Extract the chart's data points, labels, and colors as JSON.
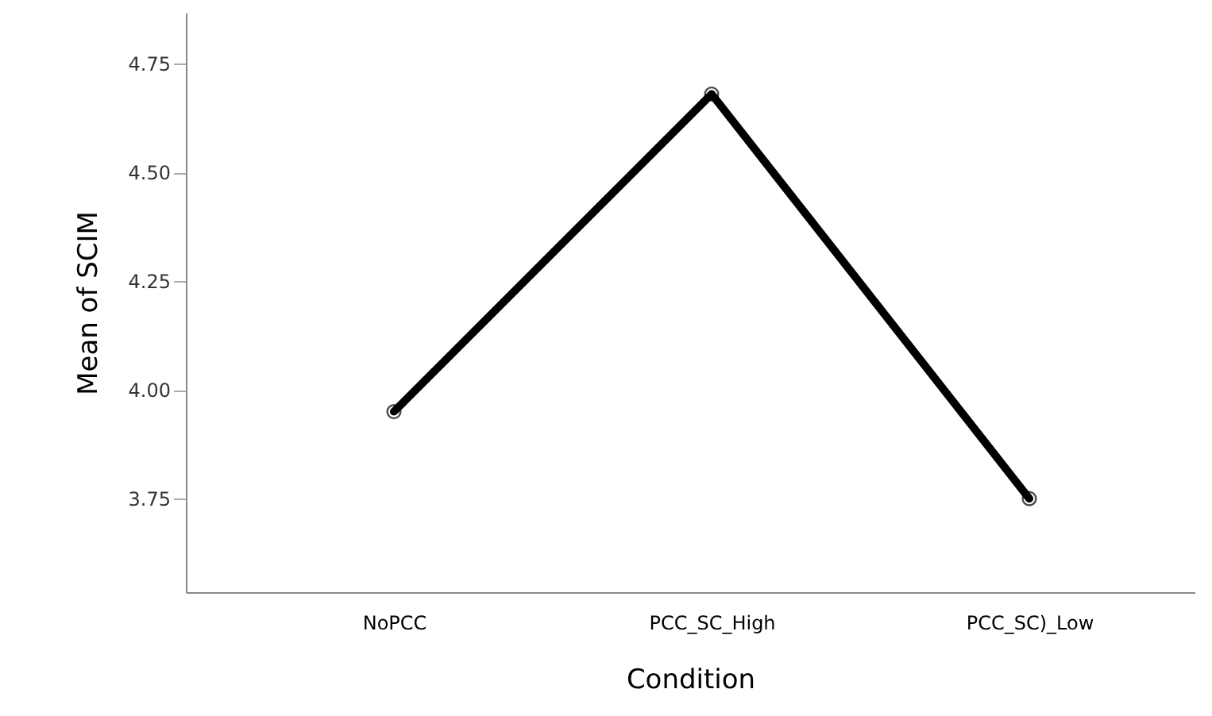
{
  "chart_data": {
    "type": "line",
    "xlabel": "Condition",
    "ylabel": "Mean of SCIM",
    "categories": [
      "NoPCC",
      "PCC_SC_High",
      "PCC_SC)_Low"
    ],
    "series": [
      {
        "color": "#000000",
        "values": [
          3.95,
          4.68,
          3.75
        ]
      }
    ],
    "ylim": [
      3.535,
      4.867
    ],
    "yticks": [
      {
        "value": 3.75,
        "label": "3.75"
      },
      {
        "value": 4.0,
        "label": "4.00"
      },
      {
        "value": 4.25,
        "label": "4.25"
      },
      {
        "value": 4.5,
        "label": "4.50"
      },
      {
        "value": 4.75,
        "label": "4.75"
      }
    ],
    "grid": false,
    "marker": "circle",
    "line_style": "solid"
  }
}
